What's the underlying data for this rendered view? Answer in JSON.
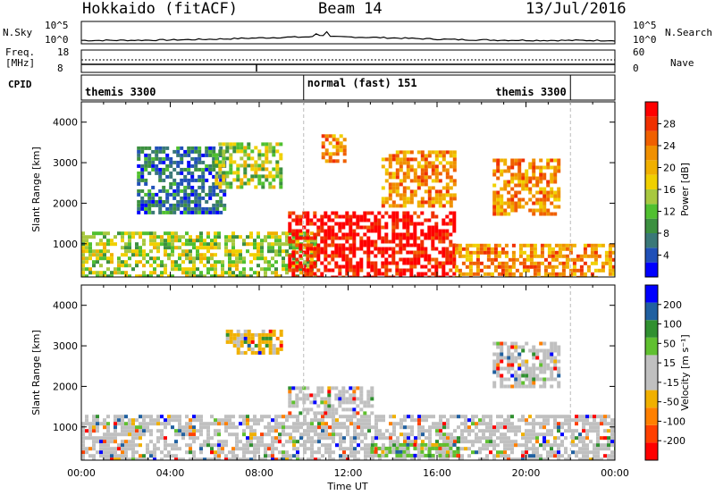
{
  "header": {
    "station": "Hokkaido (fitACF)",
    "beam": "Beam 14",
    "date": "13/Jul/2016"
  },
  "top_panels": {
    "nsky_label": "N.Sky",
    "nsky_ticks": [
      "10^5",
      "10^0"
    ],
    "nsearch_label": "N.Search",
    "nsearch_ticks": [
      "10^5",
      "10^0"
    ],
    "freq_label": "Freq.",
    "freq_unit": "[MHz]",
    "freq_ticks": [
      "18",
      "8"
    ],
    "nave_label": "Nave",
    "nave_ticks": [
      "60",
      "0"
    ],
    "cpid_label": "CPID",
    "cpid_segments": [
      {
        "name": "themis 3300",
        "start_h": 0,
        "end_h": 10
      },
      {
        "name": "normal (fast) 151",
        "start_h": 10,
        "end_h": 22
      },
      {
        "name": "themis 3300",
        "start_h": 22,
        "end_h": 24
      }
    ]
  },
  "chart_data": [
    {
      "type": "heatmap",
      "name": "power",
      "xlabel": "",
      "ylabel": "Slant Range [km]",
      "xlim": [
        0,
        24
      ],
      "ylim": [
        180,
        4500
      ],
      "yticks": [
        1000,
        2000,
        3000,
        4000
      ],
      "colorbar": {
        "label": "Power [dB]",
        "ticks": [
          "28",
          "24",
          "20",
          "16",
          "12",
          "8",
          "4"
        ],
        "colors": [
          "#0000ff",
          "#2050b8",
          "#3a7878",
          "#3c9040",
          "#50c030",
          "#a8c840",
          "#f0d000",
          "#f0b000",
          "#f09000",
          "#f06000",
          "#f03000",
          "#ff0000"
        ]
      },
      "regions": [
        {
          "t0": 0.0,
          "t1": 10.5,
          "r0": 200,
          "r1": 1300,
          "level": 1
        },
        {
          "t0": 9.3,
          "t1": 16.8,
          "r0": 200,
          "r1": 1800,
          "level": 3
        },
        {
          "t0": 16.8,
          "t1": 24.0,
          "r0": 200,
          "r1": 1000,
          "level": 2
        },
        {
          "t0": 2.5,
          "t1": 6.5,
          "r0": 1800,
          "r1": 3400,
          "level": 0
        },
        {
          "t0": 6.0,
          "t1": 9.0,
          "r0": 2400,
          "r1": 3500,
          "level": 1
        },
        {
          "t0": 10.8,
          "t1": 11.8,
          "r0": 3000,
          "r1": 3700,
          "level": 2
        },
        {
          "t0": 13.5,
          "t1": 16.8,
          "r0": 1900,
          "r1": 3300,
          "level": 2
        },
        {
          "t0": 18.5,
          "t1": 21.5,
          "r0": 1700,
          "r1": 3100,
          "level": 2
        }
      ]
    },
    {
      "type": "heatmap",
      "name": "velocity",
      "xlabel": "Time UT",
      "ylabel": "Slant Range [km]",
      "xlim": [
        0,
        24
      ],
      "ylim": [
        180,
        4500
      ],
      "yticks": [
        1000,
        2000,
        3000,
        4000
      ],
      "xticks": [
        "00:00",
        "04:00",
        "08:00",
        "12:00",
        "16:00",
        "20:00",
        "00:00"
      ],
      "colorbar": {
        "label": "Velocity [m s⁻¹]",
        "ticks": [
          "200",
          "100",
          "50",
          "15",
          "-15",
          "-50",
          "-100",
          "-200"
        ],
        "colors": [
          "#ff0000",
          "#ff4000",
          "#ff8000",
          "#f0b000",
          "#c0c0c0",
          "#c0c0c0",
          "#60c030",
          "#309030",
          "#2060a0",
          "#0000ff"
        ]
      },
      "regions": [
        {
          "t0": 0.0,
          "t1": 24.0,
          "r0": 200,
          "r1": 1300,
          "level": 0
        },
        {
          "t0": 9.3,
          "t1": 13.0,
          "r0": 1300,
          "r1": 2000,
          "level": 0
        },
        {
          "t0": 13.0,
          "t1": 17.0,
          "r0": 250,
          "r1": 600,
          "level": 2
        },
        {
          "t0": 6.5,
          "t1": 9.0,
          "r0": 2800,
          "r1": 3400,
          "level": 1
        },
        {
          "t0": 18.5,
          "t1": 21.5,
          "r0": 2000,
          "r1": 3100,
          "level": 0
        }
      ]
    }
  ]
}
